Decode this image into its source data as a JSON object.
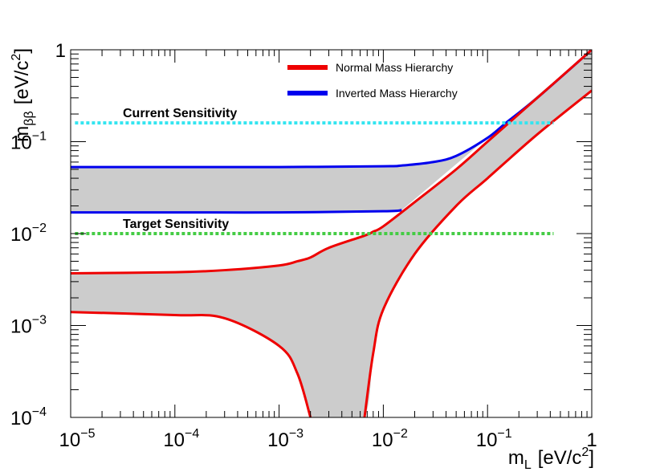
{
  "chart_data": {
    "type": "band",
    "x_label": {
      "base": "m",
      "sub": "L",
      "unit": "[eV/c",
      "sup": "2",
      "close": "]"
    },
    "y_label": {
      "base": "m",
      "sub": "ββ",
      "unit": "[eV/c",
      "sup": "2",
      "close": "]"
    },
    "log_x": true,
    "log_y": true,
    "minor_ticks": true,
    "xlim": [
      1e-05,
      1
    ],
    "ylim": [
      0.0001,
      1
    ],
    "xticks": [
      {
        "value": 1e-05,
        "label": "10",
        "exponent": "−5"
      },
      {
        "value": 0.0001,
        "label": "10",
        "exponent": "−4"
      },
      {
        "value": 0.001,
        "label": "10",
        "exponent": "−3"
      },
      {
        "value": 0.01,
        "label": "10",
        "exponent": "−2"
      },
      {
        "value": 0.1,
        "label": "10",
        "exponent": "−1"
      },
      1
    ],
    "yticks": [
      {
        "value": 0.0001,
        "label": "10",
        "exponent": "−4"
      },
      {
        "value": 0.001,
        "label": "10",
        "exponent": "−3"
      },
      {
        "value": 0.01,
        "label": "10",
        "exponent": "−2"
      },
      {
        "value": 0.1,
        "label": "10",
        "exponent": "−1"
      },
      1
    ],
    "band_color": "#cccccc",
    "series": [
      {
        "name": "Inverted Mass Hierarchy",
        "color": "#0000ee",
        "x": [
          1e-05,
          0.0001,
          0.001,
          0.01,
          0.015,
          0.03,
          0.05,
          0.1,
          0.15,
          0.3,
          1
        ],
        "upper": [
          0.053,
          0.053,
          0.053,
          0.054,
          0.055,
          0.06,
          0.07,
          0.11,
          0.16,
          0.3,
          1
        ],
        "lower": [
          0.017,
          0.017,
          0.017,
          0.0175,
          0.018,
          null,
          null,
          null,
          null,
          null,
          null
        ]
      },
      {
        "name": "Normal Mass Hierarchy",
        "color": "#ee0000",
        "x": [
          1e-05,
          0.0001,
          0.0003,
          0.001,
          0.0015,
          0.002,
          0.003,
          0.0066,
          0.008,
          0.01,
          0.02,
          0.05,
          0.1,
          0.3,
          1
        ],
        "upper": [
          0.0037,
          0.0038,
          0.004,
          0.0045,
          0.005,
          0.0055,
          0.007,
          0.0095,
          0.0105,
          0.012,
          0.022,
          0.05,
          0.1,
          0.3,
          1
        ],
        "lower": [
          0.0014,
          0.0013,
          0.0012,
          0.0006,
          0.0003,
          0.0001,
          null,
          0.0001,
          0.0005,
          0.0015,
          0.006,
          0.02,
          0.04,
          0.12,
          0.36
        ]
      }
    ],
    "reference_lines": [
      {
        "label": "Current Sensitivity",
        "value": 0.16,
        "color": "#33e5f0",
        "x": [
          1.1e-05,
          0.43
        ]
      },
      {
        "label": "Target Sensitivity",
        "value": 0.01,
        "color": "#44cc44",
        "x": [
          1.1e-05,
          0.43
        ]
      }
    ]
  }
}
